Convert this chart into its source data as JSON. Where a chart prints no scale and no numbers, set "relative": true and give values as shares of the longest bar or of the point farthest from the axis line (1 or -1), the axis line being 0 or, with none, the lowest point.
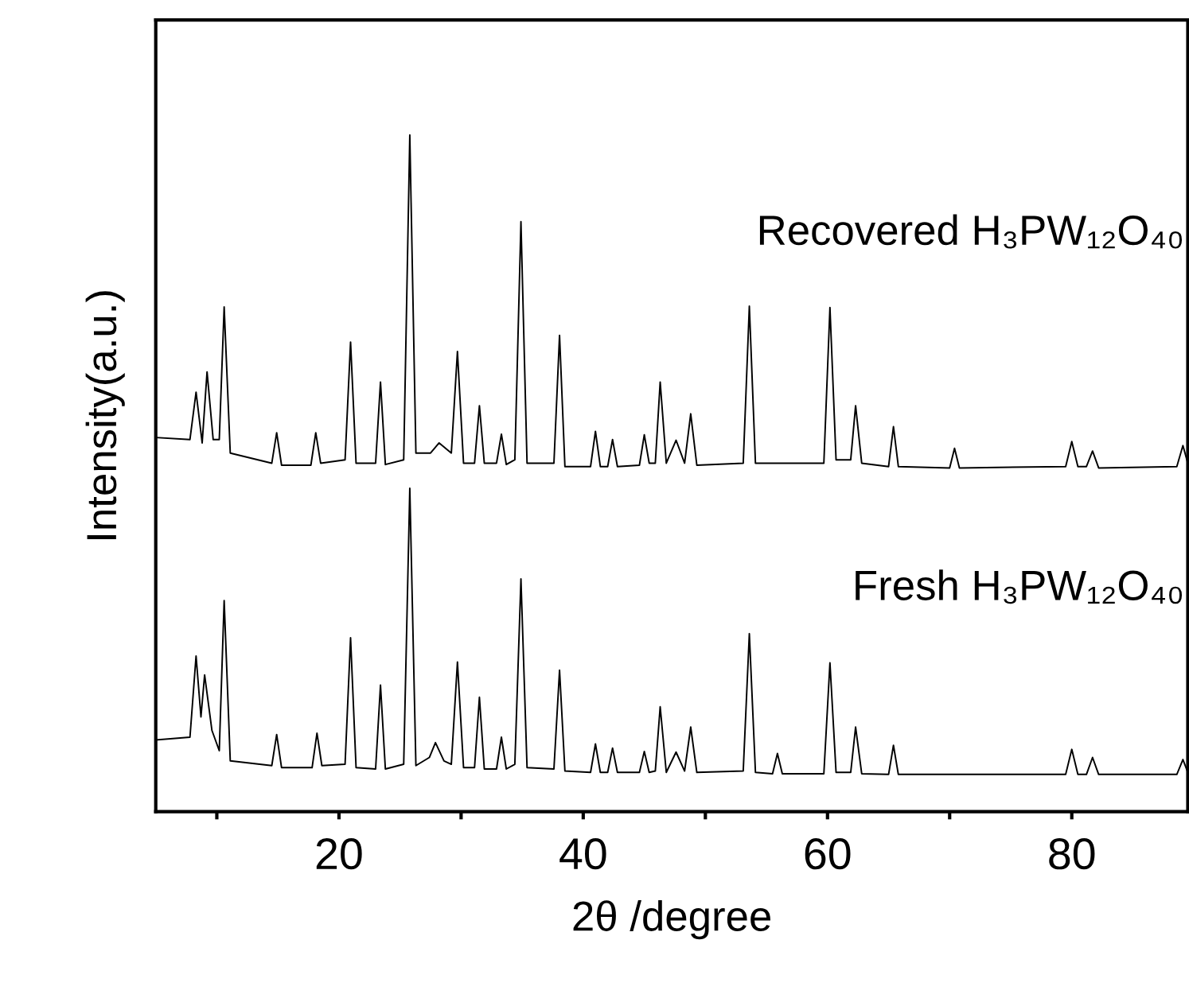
{
  "chart_data": {
    "type": "line",
    "relative": true,
    "xlabel": "2θ /degree",
    "ylabel": "Intensity(a.u.)",
    "xlim": [
      5,
      89.5
    ],
    "xticks": [
      {
        "value": 10,
        "label": null
      },
      20,
      {
        "value": 30,
        "label": null
      },
      40,
      {
        "value": 50,
        "label": null
      },
      60,
      {
        "value": 70,
        "label": null
      },
      80
    ],
    "grid": false,
    "legend": false,
    "marker": "none",
    "line_style": "solid",
    "series": [
      {
        "name": "Recovered H₃PW₁₂O₄₀",
        "color": "#000000",
        "x": [
          5,
          7.8,
          8.3,
          8.8,
          9.2,
          9.7,
          10.2,
          10.6,
          11.1,
          14.5,
          14.9,
          15.3,
          17.7,
          18.1,
          18.5,
          20.5,
          20.95,
          21.4,
          23.0,
          23.4,
          23.8,
          25.3,
          25.8,
          26.3,
          27.5,
          28.2,
          29.2,
          29.7,
          30.2,
          31.1,
          31.5,
          31.9,
          32.9,
          33.3,
          33.7,
          34.4,
          34.9,
          35.4,
          37.6,
          38.06,
          38.5,
          40.6,
          41.0,
          41.4,
          42.0,
          42.4,
          42.8,
          44.6,
          45.0,
          45.4,
          45.9,
          46.3,
          46.8,
          47.6,
          48.3,
          48.8,
          49.3,
          53.1,
          53.6,
          54.1,
          59.7,
          60.2,
          60.7,
          61.9,
          62.3,
          62.8,
          65.0,
          65.4,
          65.8,
          70.0,
          70.4,
          70.8,
          79.5,
          80.0,
          80.5,
          81.2,
          81.7,
          82.2,
          88.6,
          89.1,
          89.5
        ],
        "values": [
          0.553,
          0.55,
          0.62,
          0.545,
          0.65,
          0.55,
          0.55,
          0.746,
          0.53,
          0.515,
          0.56,
          0.512,
          0.512,
          0.56,
          0.515,
          0.52,
          0.694,
          0.515,
          0.515,
          0.635,
          0.513,
          0.52,
          1.0,
          0.53,
          0.53,
          0.545,
          0.53,
          0.68,
          0.515,
          0.515,
          0.6,
          0.515,
          0.515,
          0.558,
          0.513,
          0.52,
          0.872,
          0.515,
          0.515,
          0.704,
          0.51,
          0.51,
          0.562,
          0.51,
          0.51,
          0.55,
          0.51,
          0.512,
          0.557,
          0.515,
          0.515,
          0.635,
          0.515,
          0.549,
          0.515,
          0.588,
          0.512,
          0.515,
          0.747,
          0.515,
          0.515,
          0.745,
          0.52,
          0.52,
          0.6,
          0.515,
          0.51,
          0.569,
          0.51,
          0.508,
          0.537,
          0.508,
          0.51,
          0.547,
          0.51,
          0.51,
          0.533,
          0.508,
          0.51,
          0.541,
          0.515
        ]
      },
      {
        "name": "Fresh H₃PW₁₂O₄₀",
        "color": "#000000",
        "x": [
          5,
          7.8,
          8.3,
          8.7,
          9.0,
          9.6,
          10.2,
          10.6,
          11.1,
          14.5,
          14.9,
          15.3,
          17.8,
          18.2,
          18.6,
          20.5,
          20.95,
          21.4,
          23.0,
          23.4,
          23.8,
          25.3,
          25.8,
          26.3,
          27.4,
          27.9,
          28.6,
          29.2,
          29.7,
          30.2,
          31.1,
          31.5,
          31.9,
          32.9,
          33.3,
          33.7,
          34.4,
          34.9,
          35.4,
          37.6,
          38.06,
          38.5,
          40.6,
          41.0,
          41.4,
          42.0,
          42.4,
          42.8,
          44.6,
          45.0,
          45.4,
          45.9,
          46.3,
          46.8,
          47.6,
          48.3,
          48.8,
          49.3,
          53.1,
          53.6,
          54.1,
          55.5,
          55.9,
          56.3,
          59.7,
          60.2,
          60.7,
          61.9,
          62.3,
          62.8,
          65.0,
          65.4,
          65.8,
          79.5,
          80.0,
          80.5,
          81.2,
          81.7,
          82.2,
          88.6,
          89.1,
          89.5
        ],
        "values": [
          0.106,
          0.11,
          0.23,
          0.14,
          0.202,
          0.12,
          0.09,
          0.312,
          0.075,
          0.068,
          0.114,
          0.065,
          0.065,
          0.116,
          0.068,
          0.07,
          0.257,
          0.065,
          0.063,
          0.187,
          0.063,
          0.07,
          0.478,
          0.068,
          0.08,
          0.102,
          0.075,
          0.07,
          0.221,
          0.065,
          0.065,
          0.169,
          0.063,
          0.063,
          0.11,
          0.063,
          0.07,
          0.344,
          0.065,
          0.063,
          0.209,
          0.06,
          0.058,
          0.1,
          0.058,
          0.058,
          0.094,
          0.058,
          0.058,
          0.089,
          0.058,
          0.06,
          0.155,
          0.058,
          0.088,
          0.06,
          0.125,
          0.058,
          0.06,
          0.263,
          0.058,
          0.056,
          0.086,
          0.056,
          0.056,
          0.22,
          0.058,
          0.058,
          0.125,
          0.056,
          0.055,
          0.098,
          0.055,
          0.055,
          0.092,
          0.055,
          0.055,
          0.08,
          0.055,
          0.055,
          0.077,
          0.058
        ]
      }
    ]
  }
}
